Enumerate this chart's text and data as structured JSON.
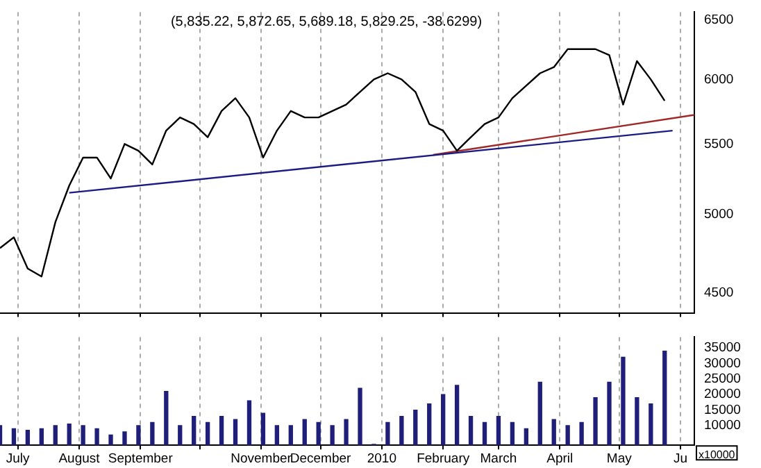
{
  "chart_data": [
    {
      "type": "line",
      "title": "(5,835.22, 5,872.65, 5,689.18, 5,829.25, -38.6299)",
      "log": true,
      "grid": "x",
      "legend": false,
      "tick_labels": "y",
      "marker": "none",
      "x": [
        "2009-06-22",
        "2009-06-29",
        "2009-07-06",
        "2009-07-13",
        "2009-07-20",
        "2009-07-27",
        "2009-08-03",
        "2009-08-10",
        "2009-08-17",
        "2009-08-24",
        "2009-08-31",
        "2009-09-07",
        "2009-09-14",
        "2009-09-21",
        "2009-09-28",
        "2009-10-05",
        "2009-10-12",
        "2009-10-19",
        "2009-10-26",
        "2009-11-02",
        "2009-11-09",
        "2009-11-16",
        "2009-11-23",
        "2009-11-30",
        "2009-12-07",
        "2009-12-14",
        "2009-12-21",
        "2009-12-28",
        "2010-01-04",
        "2010-01-11",
        "2010-01-18",
        "2010-01-25",
        "2010-02-01",
        "2010-02-08",
        "2010-02-15",
        "2010-02-22",
        "2010-03-01",
        "2010-03-08",
        "2010-03-15",
        "2010-03-22",
        "2010-03-29",
        "2010-04-05",
        "2010-04-12",
        "2010-04-19",
        "2010-04-26",
        "2010-05-03",
        "2010-05-10",
        "2010-05-17",
        "2010-05-24"
      ],
      "series": [
        {
          "color": "#000000",
          "values": [
            4780,
            4850,
            4650,
            4600,
            4950,
            5200,
            5400,
            5400,
            5250,
            5500,
            5450,
            5350,
            5600,
            5700,
            5650,
            5550,
            5750,
            5850,
            5700,
            5400,
            5600,
            5750,
            5700,
            5700,
            5750,
            5800,
            5900,
            6000,
            6050,
            6000,
            5900,
            5650,
            5600,
            5450,
            5550,
            5650,
            5700,
            5850,
            5950,
            6050,
            6100,
            6250,
            6250,
            6250,
            6200,
            5800,
            6150,
            6000,
            5830
          ]
        },
        {
          "type": "line",
          "color": "#1c1c80",
          "x": [
            "2009-07-27",
            "2010-05-28"
          ],
          "values": [
            5150,
            5600
          ]
        },
        {
          "type": "line",
          "color": "#a02828",
          "x": [
            "2010-01-27",
            "2010-06-08"
          ],
          "values": [
            5420,
            5720
          ]
        }
      ],
      "xlim": [
        "2009-06-22",
        "2010-06-08"
      ],
      "xticks": [
        {
          "value": "2009-07-01",
          "label": null
        },
        {
          "value": "2009-08-01",
          "label": null
        },
        {
          "value": "2009-09-01",
          "label": null
        },
        {
          "value": "2009-10-01",
          "label": null
        },
        {
          "value": "2009-11-01",
          "label": null
        },
        {
          "value": "2009-12-01",
          "label": null
        },
        {
          "value": "2010-01-01",
          "label": null
        },
        {
          "value": "2010-02-01",
          "label": null
        },
        {
          "value": "2010-03-01",
          "label": null
        },
        {
          "value": "2010-04-01",
          "label": null
        },
        {
          "value": "2010-05-01",
          "label": null
        },
        {
          "value": "2010-06-01",
          "label": null
        }
      ],
      "ylim": [
        4380,
        6570
      ],
      "yticks": [
        4500,
        5000,
        5500,
        6000,
        6500
      ]
    },
    {
      "type": "bar",
      "grid": "x",
      "legend": false,
      "annotations": [
        "x10000"
      ],
      "x": [
        "2009-06-22",
        "2009-06-29",
        "2009-07-06",
        "2009-07-13",
        "2009-07-20",
        "2009-07-27",
        "2009-08-03",
        "2009-08-10",
        "2009-08-17",
        "2009-08-24",
        "2009-08-31",
        "2009-09-07",
        "2009-09-14",
        "2009-09-21",
        "2009-09-28",
        "2009-10-05",
        "2009-10-12",
        "2009-10-19",
        "2009-10-26",
        "2009-11-02",
        "2009-11-09",
        "2009-11-16",
        "2009-11-23",
        "2009-11-30",
        "2009-12-07",
        "2009-12-14",
        "2009-12-21",
        "2009-12-28",
        "2010-01-04",
        "2010-01-11",
        "2010-01-18",
        "2010-01-25",
        "2010-02-01",
        "2010-02-08",
        "2010-02-15",
        "2010-02-22",
        "2010-03-01",
        "2010-03-08",
        "2010-03-15",
        "2010-03-22",
        "2010-03-29",
        "2010-04-05",
        "2010-04-12",
        "2010-04-19",
        "2010-04-26",
        "2010-05-03",
        "2010-05-10",
        "2010-05-17",
        "2010-05-24"
      ],
      "color": "#1f1f7a",
      "values": [
        10000,
        9000,
        8500,
        9000,
        10000,
        10500,
        10000,
        9000,
        7000,
        8000,
        10000,
        11000,
        21000,
        10000,
        13000,
        11000,
        13000,
        12000,
        18000,
        14000,
        10000,
        10000,
        12000,
        11000,
        10000,
        12000,
        22000,
        4000,
        11000,
        13000,
        15000,
        17000,
        20000,
        23000,
        13000,
        11000,
        13000,
        11000,
        9000,
        24000,
        12000,
        10000,
        11000,
        19000,
        24000,
        32000,
        19000,
        17000,
        34000
      ],
      "xlim": [
        "2009-06-22",
        "2010-06-08"
      ],
      "xticks": [
        {
          "value": "2009-07-01",
          "label": "July"
        },
        {
          "value": "2009-08-01",
          "label": "August"
        },
        {
          "value": "2009-09-01",
          "label": "September"
        },
        {
          "value": "2009-10-01",
          "label": null
        },
        {
          "value": "2009-11-01",
          "label": "November"
        },
        {
          "value": "2009-12-01",
          "label": "December"
        },
        {
          "value": "2010-01-01",
          "label": "2010"
        },
        {
          "value": "2010-02-01",
          "label": "February"
        },
        {
          "value": "2010-03-01",
          "label": "March"
        },
        {
          "value": "2010-04-01",
          "label": "April"
        },
        {
          "value": "2010-05-01",
          "label": "May"
        },
        {
          "value": "2010-06-01",
          "label": "Ju"
        }
      ],
      "ylim": [
        3700,
        38500
      ],
      "yticks": [
        10000,
        15000,
        20000,
        25000,
        30000,
        35000
      ]
    }
  ]
}
